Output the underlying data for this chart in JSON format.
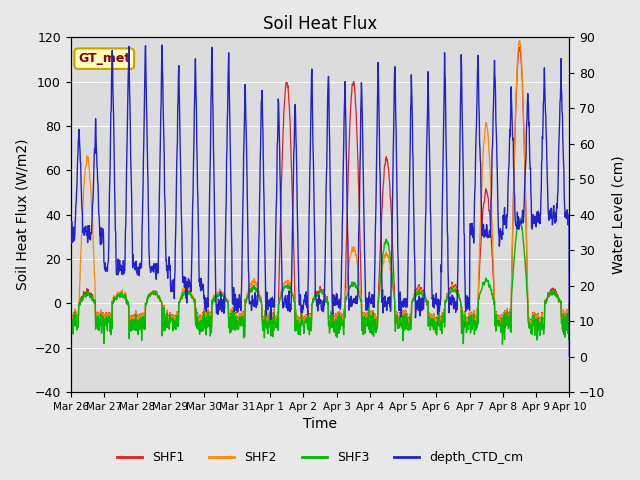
{
  "title": "Soil Heat Flux",
  "xlabel": "Time",
  "ylabel_left": "Soil Heat Flux (W/m2)",
  "ylabel_right": "Water Level (cm)",
  "ylim_left": [
    -40,
    120
  ],
  "ylim_right": [
    -10,
    90
  ],
  "yticks_left": [
    -40,
    -20,
    0,
    20,
    40,
    60,
    80,
    100,
    120
  ],
  "yticks_right": [
    -10,
    0,
    10,
    20,
    30,
    40,
    50,
    60,
    70,
    80,
    90
  ],
  "xtick_labels": [
    "Mar 26",
    "Mar 27",
    "Mar 28",
    "Mar 29",
    "Mar 30",
    "Mar 31",
    "Apr 1",
    "Apr 2",
    "Apr 3",
    "Apr 4",
    "Apr 5",
    "Apr 6",
    "Apr 7",
    "Apr 8",
    "Apr 9",
    "Apr 10"
  ],
  "fig_bg": "#e8e8e8",
  "plot_bg": "#dcdcdc",
  "annotation_text": "GT_met",
  "annotation_bg": "#ffffbb",
  "annotation_border": "#c8a000",
  "colors": {
    "SHF1": "#dd2222",
    "SHF2": "#ff8800",
    "SHF3": "#00bb00",
    "depth_CTD_cm": "#2222cc"
  },
  "legend_labels": [
    "SHF1",
    "SHF2",
    "SHF3",
    "depth_CTD_cm"
  ],
  "n_days": 15,
  "n_pts_per_day": 96,
  "shf1_peaks": [
    5,
    4,
    5,
    6,
    5,
    7,
    100,
    6,
    100,
    65,
    7,
    8,
    50,
    115,
    6
  ],
  "shf2_peaks": [
    65,
    5,
    5,
    7,
    5,
    10,
    10,
    5,
    25,
    22,
    6,
    7,
    80,
    118,
    5
  ],
  "shf3_peaks": [
    4,
    4,
    5,
    5,
    4,
    7,
    8,
    5,
    9,
    28,
    5,
    6,
    10,
    38,
    5
  ],
  "depth_sharp_peaks": [
    65,
    88,
    88,
    85,
    88,
    80,
    75,
    82,
    78,
    84,
    80,
    85,
    85,
    75,
    80,
    65
  ],
  "depth_base": [
    35,
    25,
    25,
    20,
    15,
    15,
    15,
    15,
    15,
    15,
    15,
    15,
    35,
    38,
    40,
    48
  ]
}
